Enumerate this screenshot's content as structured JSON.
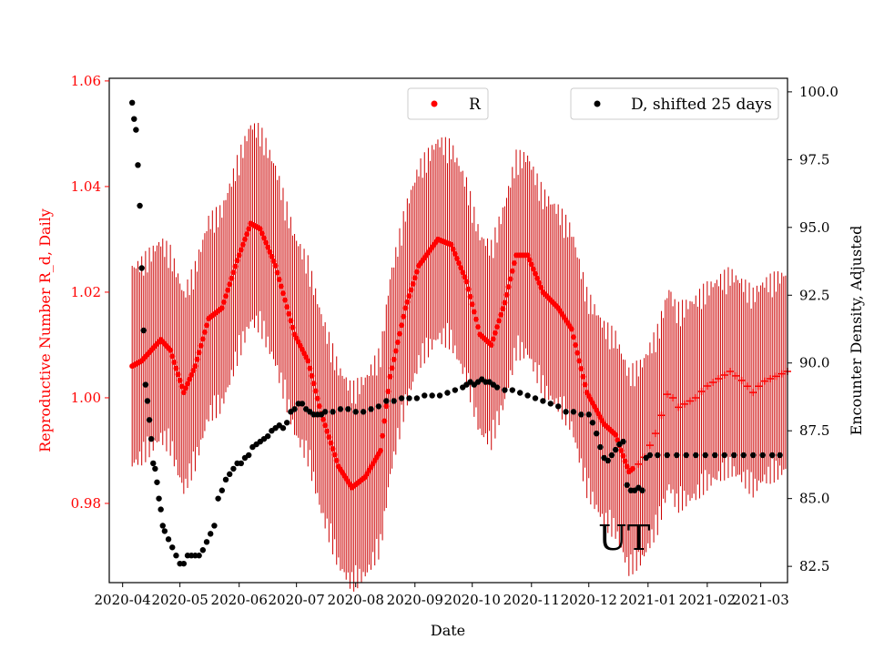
{
  "chart_data": {
    "type": "scatter",
    "xlabel": "Date",
    "ylabel_left": "Reproductive Number R_d, Daily",
    "ylabel_right": "Encounter Density, Adjusted",
    "x_tick_labels": [
      "2020-04",
      "2020-05",
      "2020-06",
      "2020-07",
      "2020-08",
      "2020-09",
      "2020-10",
      "2020-11",
      "2020-12",
      "2021-01",
      "2021-02",
      "2021-03"
    ],
    "xlim_days": [
      -7,
      348
    ],
    "ylim_left": [
      0.965,
      1.0605
    ],
    "yticks_left": [
      "0.98",
      "1.00",
      "1.02",
      "1.04",
      "1.06"
    ],
    "ylim_right": [
      81.9,
      100.5
    ],
    "yticks_right": [
      "82.5",
      "85.0",
      "87.5",
      "90.0",
      "92.5",
      "95.0",
      "97.5",
      "100.0"
    ],
    "annotation": "UT",
    "legend": {
      "r_label": "R",
      "d_label": "D, shifted 25 days"
    },
    "colors": {
      "r": "#ff0000",
      "d": "#000000",
      "left_axis": "#ff0000"
    },
    "series": [
      {
        "name": "R",
        "axis": "left",
        "days_start": 5,
        "days_end": 348,
        "error_band": 0.02,
        "knots": [
          [
            5,
            1.006
          ],
          [
            10,
            1.007
          ],
          [
            20,
            1.011
          ],
          [
            25,
            1.009
          ],
          [
            32,
            1.001
          ],
          [
            38,
            1.006
          ],
          [
            45,
            1.015
          ],
          [
            52,
            1.017
          ],
          [
            60,
            1.026
          ],
          [
            67,
            1.033
          ],
          [
            72,
            1.032
          ],
          [
            80,
            1.025
          ],
          [
            90,
            1.012
          ],
          [
            97,
            1.007
          ],
          [
            104,
            0.997
          ],
          [
            113,
            0.987
          ],
          [
            120,
            0.983
          ],
          [
            127,
            0.985
          ],
          [
            135,
            0.99
          ],
          [
            140,
            1.004
          ],
          [
            148,
            1.017
          ],
          [
            155,
            1.025
          ],
          [
            165,
            1.03
          ],
          [
            172,
            1.029
          ],
          [
            180,
            1.022
          ],
          [
            187,
            1.012
          ],
          [
            193,
            1.01
          ],
          [
            200,
            1.018
          ],
          [
            206,
            1.027
          ],
          [
            212,
            1.027
          ],
          [
            220,
            1.02
          ],
          [
            228,
            1.017
          ],
          [
            235,
            1.013
          ],
          [
            243,
            1.001
          ],
          [
            252,
            0.995
          ],
          [
            258,
            0.993
          ],
          [
            265,
            0.986
          ],
          [
            272,
            0.988
          ],
          [
            280,
            0.994
          ],
          [
            286,
            1.002
          ],
          [
            290,
            0.998
          ],
          [
            300,
            1.0
          ],
          [
            305,
            1.002
          ],
          [
            318,
            1.005
          ],
          [
            325,
            1.003
          ],
          [
            330,
            1.001
          ],
          [
            335,
            1.003
          ],
          [
            348,
            1.005
          ]
        ]
      },
      {
        "name": "D, shifted 25 days",
        "axis": "right",
        "points": [
          [
            5,
            99.6
          ],
          [
            6,
            99.0
          ],
          [
            7,
            98.6
          ],
          [
            8,
            97.3
          ],
          [
            9,
            95.8
          ],
          [
            10,
            93.5
          ],
          [
            11,
            91.2
          ],
          [
            12,
            89.2
          ],
          [
            13,
            88.6
          ],
          [
            14,
            87.9
          ],
          [
            15,
            87.2
          ],
          [
            16,
            86.3
          ],
          [
            17,
            86.1
          ],
          [
            18,
            85.6
          ],
          [
            19,
            85.0
          ],
          [
            20,
            84.6
          ],
          [
            21,
            84.0
          ],
          [
            22,
            83.8
          ],
          [
            24,
            83.5
          ],
          [
            26,
            83.2
          ],
          [
            28,
            82.9
          ],
          [
            30,
            82.6
          ],
          [
            32,
            82.6
          ],
          [
            34,
            82.9
          ],
          [
            36,
            82.9
          ],
          [
            38,
            82.9
          ],
          [
            40,
            82.9
          ],
          [
            42,
            83.1
          ],
          [
            44,
            83.4
          ],
          [
            46,
            83.7
          ],
          [
            48,
            84.0
          ],
          [
            50,
            85.0
          ],
          [
            52,
            85.3
          ],
          [
            54,
            85.7
          ],
          [
            56,
            85.9
          ],
          [
            58,
            86.1
          ],
          [
            60,
            86.3
          ],
          [
            62,
            86.3
          ],
          [
            64,
            86.5
          ],
          [
            66,
            86.6
          ],
          [
            68,
            86.9
          ],
          [
            70,
            87.0
          ],
          [
            72,
            87.1
          ],
          [
            74,
            87.2
          ],
          [
            76,
            87.3
          ],
          [
            78,
            87.5
          ],
          [
            80,
            87.6
          ],
          [
            82,
            87.7
          ],
          [
            84,
            87.6
          ],
          [
            86,
            87.8
          ],
          [
            88,
            88.2
          ],
          [
            90,
            88.3
          ],
          [
            92,
            88.5
          ],
          [
            94,
            88.5
          ],
          [
            96,
            88.3
          ],
          [
            98,
            88.2
          ],
          [
            100,
            88.1
          ],
          [
            102,
            88.1
          ],
          [
            104,
            88.1
          ],
          [
            106,
            88.2
          ],
          [
            110,
            88.2
          ],
          [
            114,
            88.3
          ],
          [
            118,
            88.3
          ],
          [
            122,
            88.2
          ],
          [
            126,
            88.2
          ],
          [
            130,
            88.3
          ],
          [
            134,
            88.4
          ],
          [
            138,
            88.6
          ],
          [
            142,
            88.6
          ],
          [
            146,
            88.7
          ],
          [
            150,
            88.7
          ],
          [
            154,
            88.7
          ],
          [
            158,
            88.8
          ],
          [
            162,
            88.8
          ],
          [
            166,
            88.8
          ],
          [
            170,
            88.9
          ],
          [
            174,
            89.0
          ],
          [
            178,
            89.1
          ],
          [
            180,
            89.2
          ],
          [
            182,
            89.3
          ],
          [
            184,
            89.2
          ],
          [
            186,
            89.3
          ],
          [
            188,
            89.4
          ],
          [
            190,
            89.3
          ],
          [
            192,
            89.3
          ],
          [
            194,
            89.2
          ],
          [
            196,
            89.1
          ],
          [
            200,
            89.0
          ],
          [
            204,
            89.0
          ],
          [
            208,
            88.9
          ],
          [
            212,
            88.8
          ],
          [
            216,
            88.7
          ],
          [
            220,
            88.6
          ],
          [
            224,
            88.5
          ],
          [
            228,
            88.4
          ],
          [
            232,
            88.2
          ],
          [
            236,
            88.2
          ],
          [
            240,
            88.1
          ],
          [
            244,
            88.1
          ],
          [
            246,
            87.8
          ],
          [
            248,
            87.4
          ],
          [
            250,
            86.9
          ],
          [
            252,
            86.5
          ],
          [
            254,
            86.4
          ],
          [
            256,
            86.6
          ],
          [
            258,
            86.8
          ],
          [
            260,
            87.0
          ],
          [
            262,
            87.1
          ],
          [
            264,
            85.5
          ],
          [
            266,
            85.3
          ],
          [
            268,
            85.3
          ],
          [
            270,
            85.4
          ],
          [
            272,
            85.3
          ],
          [
            274,
            86.5
          ],
          [
            276,
            86.6
          ],
          [
            280,
            86.6
          ],
          [
            285,
            86.6
          ],
          [
            290,
            86.6
          ],
          [
            295,
            86.6
          ],
          [
            300,
            86.6
          ],
          [
            305,
            86.6
          ],
          [
            310,
            86.6
          ],
          [
            315,
            86.6
          ],
          [
            320,
            86.6
          ],
          [
            325,
            86.6
          ],
          [
            330,
            86.6
          ],
          [
            335,
            86.6
          ],
          [
            340,
            86.6
          ],
          [
            344,
            86.6
          ]
        ]
      }
    ]
  }
}
